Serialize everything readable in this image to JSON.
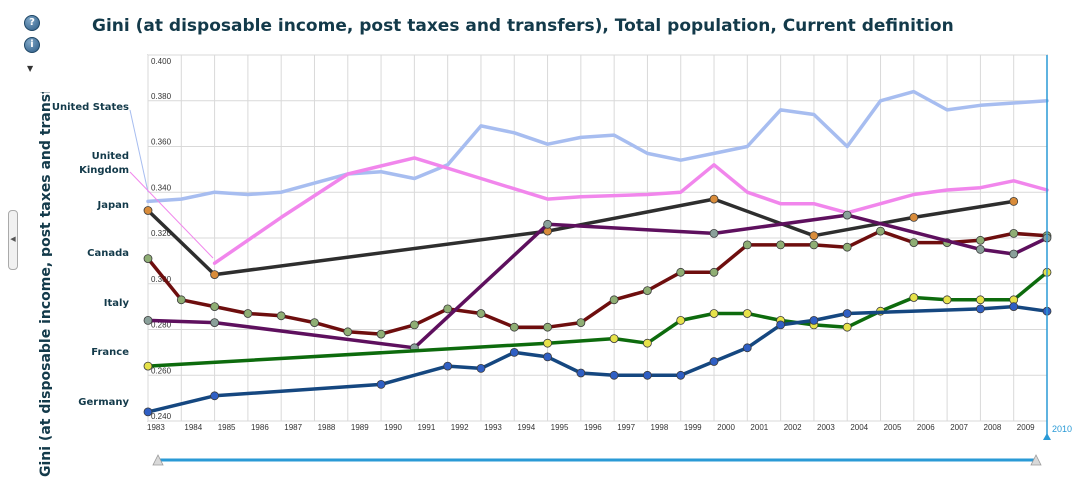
{
  "chart_data": {
    "type": "line",
    "title": "Gini (at disposable income, post taxes and transfers), Total population, Current definition",
    "ylabel": "Gini (at disposable income, post taxes and transfers), Total population, Current definition",
    "xlabel": "",
    "ylim": [
      0.24,
      0.4
    ],
    "yticks": [
      "0.240",
      "0.260",
      "0.280",
      "0.300",
      "0.320",
      "0.340",
      "0.360",
      "0.380",
      "0.400"
    ],
    "ytick_values": [
      0.24,
      0.26,
      0.28,
      0.3,
      0.32,
      0.34,
      0.36,
      0.38,
      0.4
    ],
    "years": [
      "1983",
      "1984",
      "1985",
      "1986",
      "1987",
      "1988",
      "1989",
      "1990",
      "1991",
      "1992",
      "1993",
      "1994",
      "1995",
      "1996",
      "1997",
      "1998",
      "1999",
      "2000",
      "2001",
      "2002",
      "2003",
      "2004",
      "2005",
      "2006",
      "2007",
      "2008",
      "2009"
    ],
    "current_year": "2010",
    "grid": true,
    "series": [
      {
        "name": "United States",
        "color": "#a7bdf0",
        "marker": "none",
        "points": [
          [
            1983,
            0.336
          ],
          [
            1984,
            0.337
          ],
          [
            1985,
            0.34
          ],
          [
            1986,
            0.339
          ],
          [
            1987,
            0.34
          ],
          [
            1988,
            0.344
          ],
          [
            1989,
            0.348
          ],
          [
            1990,
            0.349
          ],
          [
            1991,
            0.346
          ],
          [
            1992,
            0.352
          ],
          [
            1993,
            0.369
          ],
          [
            1994,
            0.366
          ],
          [
            1995,
            0.361
          ],
          [
            1996,
            0.364
          ],
          [
            1997,
            0.365
          ],
          [
            1998,
            0.357
          ],
          [
            1999,
            0.354
          ],
          [
            2000,
            0.357
          ],
          [
            2001,
            0.36
          ],
          [
            2002,
            0.376
          ],
          [
            2003,
            0.374
          ],
          [
            2004,
            0.36
          ],
          [
            2005,
            0.38
          ],
          [
            2006,
            0.384
          ],
          [
            2007,
            0.376
          ],
          [
            2008,
            0.378
          ],
          [
            2009,
            0.379
          ],
          [
            2010,
            0.38
          ]
        ]
      },
      {
        "name": "United Kingdom",
        "color": "#f186ec",
        "marker": "none",
        "points": [
          [
            1985,
            0.309
          ],
          [
            1987,
            0.329
          ],
          [
            1989,
            0.348
          ],
          [
            1991,
            0.355
          ],
          [
            1993,
            0.346
          ],
          [
            1995,
            0.337
          ],
          [
            1996,
            0.338
          ],
          [
            1998,
            0.339
          ],
          [
            1999,
            0.34
          ],
          [
            2000,
            0.352
          ],
          [
            2001,
            0.34
          ],
          [
            2002,
            0.335
          ],
          [
            2003,
            0.335
          ],
          [
            2004,
            0.331
          ],
          [
            2005,
            0.335
          ],
          [
            2006,
            0.339
          ],
          [
            2007,
            0.341
          ],
          [
            2008,
            0.342
          ],
          [
            2009,
            0.345
          ],
          [
            2010,
            0.341
          ]
        ]
      },
      {
        "name": "Japan",
        "color": "#2e2e2e",
        "marker": "#d98c3a",
        "points": [
          [
            1983,
            0.332
          ],
          [
            1985,
            0.304
          ],
          [
            1995,
            0.323
          ],
          [
            2000,
            0.337
          ],
          [
            2003,
            0.321
          ],
          [
            2006,
            0.329
          ],
          [
            2009,
            0.336
          ]
        ]
      },
      {
        "name": "Canada",
        "color": "#6e0e0e",
        "marker": "#8fae74",
        "points": [
          [
            1983,
            0.311
          ],
          [
            1984,
            0.293
          ],
          [
            1985,
            0.29
          ],
          [
            1986,
            0.287
          ],
          [
            1987,
            0.286
          ],
          [
            1988,
            0.283
          ],
          [
            1989,
            0.279
          ],
          [
            1990,
            0.278
          ],
          [
            1991,
            0.282
          ],
          [
            1992,
            0.289
          ],
          [
            1993,
            0.287
          ],
          [
            1994,
            0.281
          ],
          [
            1995,
            0.281
          ],
          [
            1996,
            0.283
          ],
          [
            1997,
            0.293
          ],
          [
            1998,
            0.297
          ],
          [
            1999,
            0.305
          ],
          [
            2000,
            0.305
          ],
          [
            2001,
            0.317
          ],
          [
            2002,
            0.317
          ],
          [
            2003,
            0.317
          ],
          [
            2004,
            0.316
          ],
          [
            2005,
            0.323
          ],
          [
            2006,
            0.318
          ],
          [
            2007,
            0.318
          ],
          [
            2008,
            0.319
          ],
          [
            2009,
            0.322
          ],
          [
            2010,
            0.321
          ]
        ]
      },
      {
        "name": "Italy",
        "color": "#5e105e",
        "marker": "#8aa09a",
        "points": [
          [
            1983,
            0.284
          ],
          [
            1985,
            0.283
          ],
          [
            1991,
            0.272
          ],
          [
            1995,
            0.326
          ],
          [
            2000,
            0.322
          ],
          [
            2004,
            0.33
          ],
          [
            2008,
            0.315
          ],
          [
            2009,
            0.313
          ],
          [
            2010,
            0.32
          ]
        ]
      },
      {
        "name": "France",
        "color": "#0d6b0d",
        "marker": "#e6e24a",
        "points": [
          [
            1983,
            0.264
          ],
          [
            1995,
            0.274
          ],
          [
            1997,
            0.276
          ],
          [
            1998,
            0.274
          ],
          [
            1999,
            0.284
          ],
          [
            2000,
            0.287
          ],
          [
            2001,
            0.287
          ],
          [
            2002,
            0.284
          ],
          [
            2003,
            0.282
          ],
          [
            2004,
            0.281
          ],
          [
            2005,
            0.288
          ],
          [
            2006,
            0.294
          ],
          [
            2007,
            0.293
          ],
          [
            2008,
            0.293
          ],
          [
            2009,
            0.293
          ],
          [
            2010,
            0.305
          ]
        ]
      },
      {
        "name": "Germany",
        "color": "#154780",
        "marker": "#2f5fc4",
        "points": [
          [
            1983,
            0.244
          ],
          [
            1985,
            0.251
          ],
          [
            1990,
            0.256
          ],
          [
            1992,
            0.264
          ],
          [
            1993,
            0.263
          ],
          [
            1994,
            0.27
          ],
          [
            1995,
            0.268
          ],
          [
            1996,
            0.261
          ],
          [
            1997,
            0.26
          ],
          [
            1998,
            0.26
          ],
          [
            1999,
            0.26
          ],
          [
            2000,
            0.266
          ],
          [
            2001,
            0.272
          ],
          [
            2002,
            0.282
          ],
          [
            2003,
            0.284
          ],
          [
            2004,
            0.287
          ],
          [
            2008,
            0.289
          ],
          [
            2009,
            0.29
          ],
          [
            2010,
            0.288
          ]
        ]
      }
    ]
  },
  "legend_labels": {
    "united_states": "United States",
    "united_kingdom_1": "United",
    "united_kingdom_2": "Kingdom",
    "japan": "Japan",
    "canada": "Canada",
    "italy": "Italy",
    "france": "France",
    "germany": "Germany"
  },
  "controls": {
    "help_glyph": "?",
    "info_glyph": "i",
    "dropdown_glyph": "▼",
    "collapse_glyph": "◀"
  },
  "colors": {
    "title": "#133a4a",
    "grid": "#d9d9d9",
    "axis": "#888888",
    "time_marker": "#2a9ad6",
    "slider": "#2a9ad6"
  }
}
